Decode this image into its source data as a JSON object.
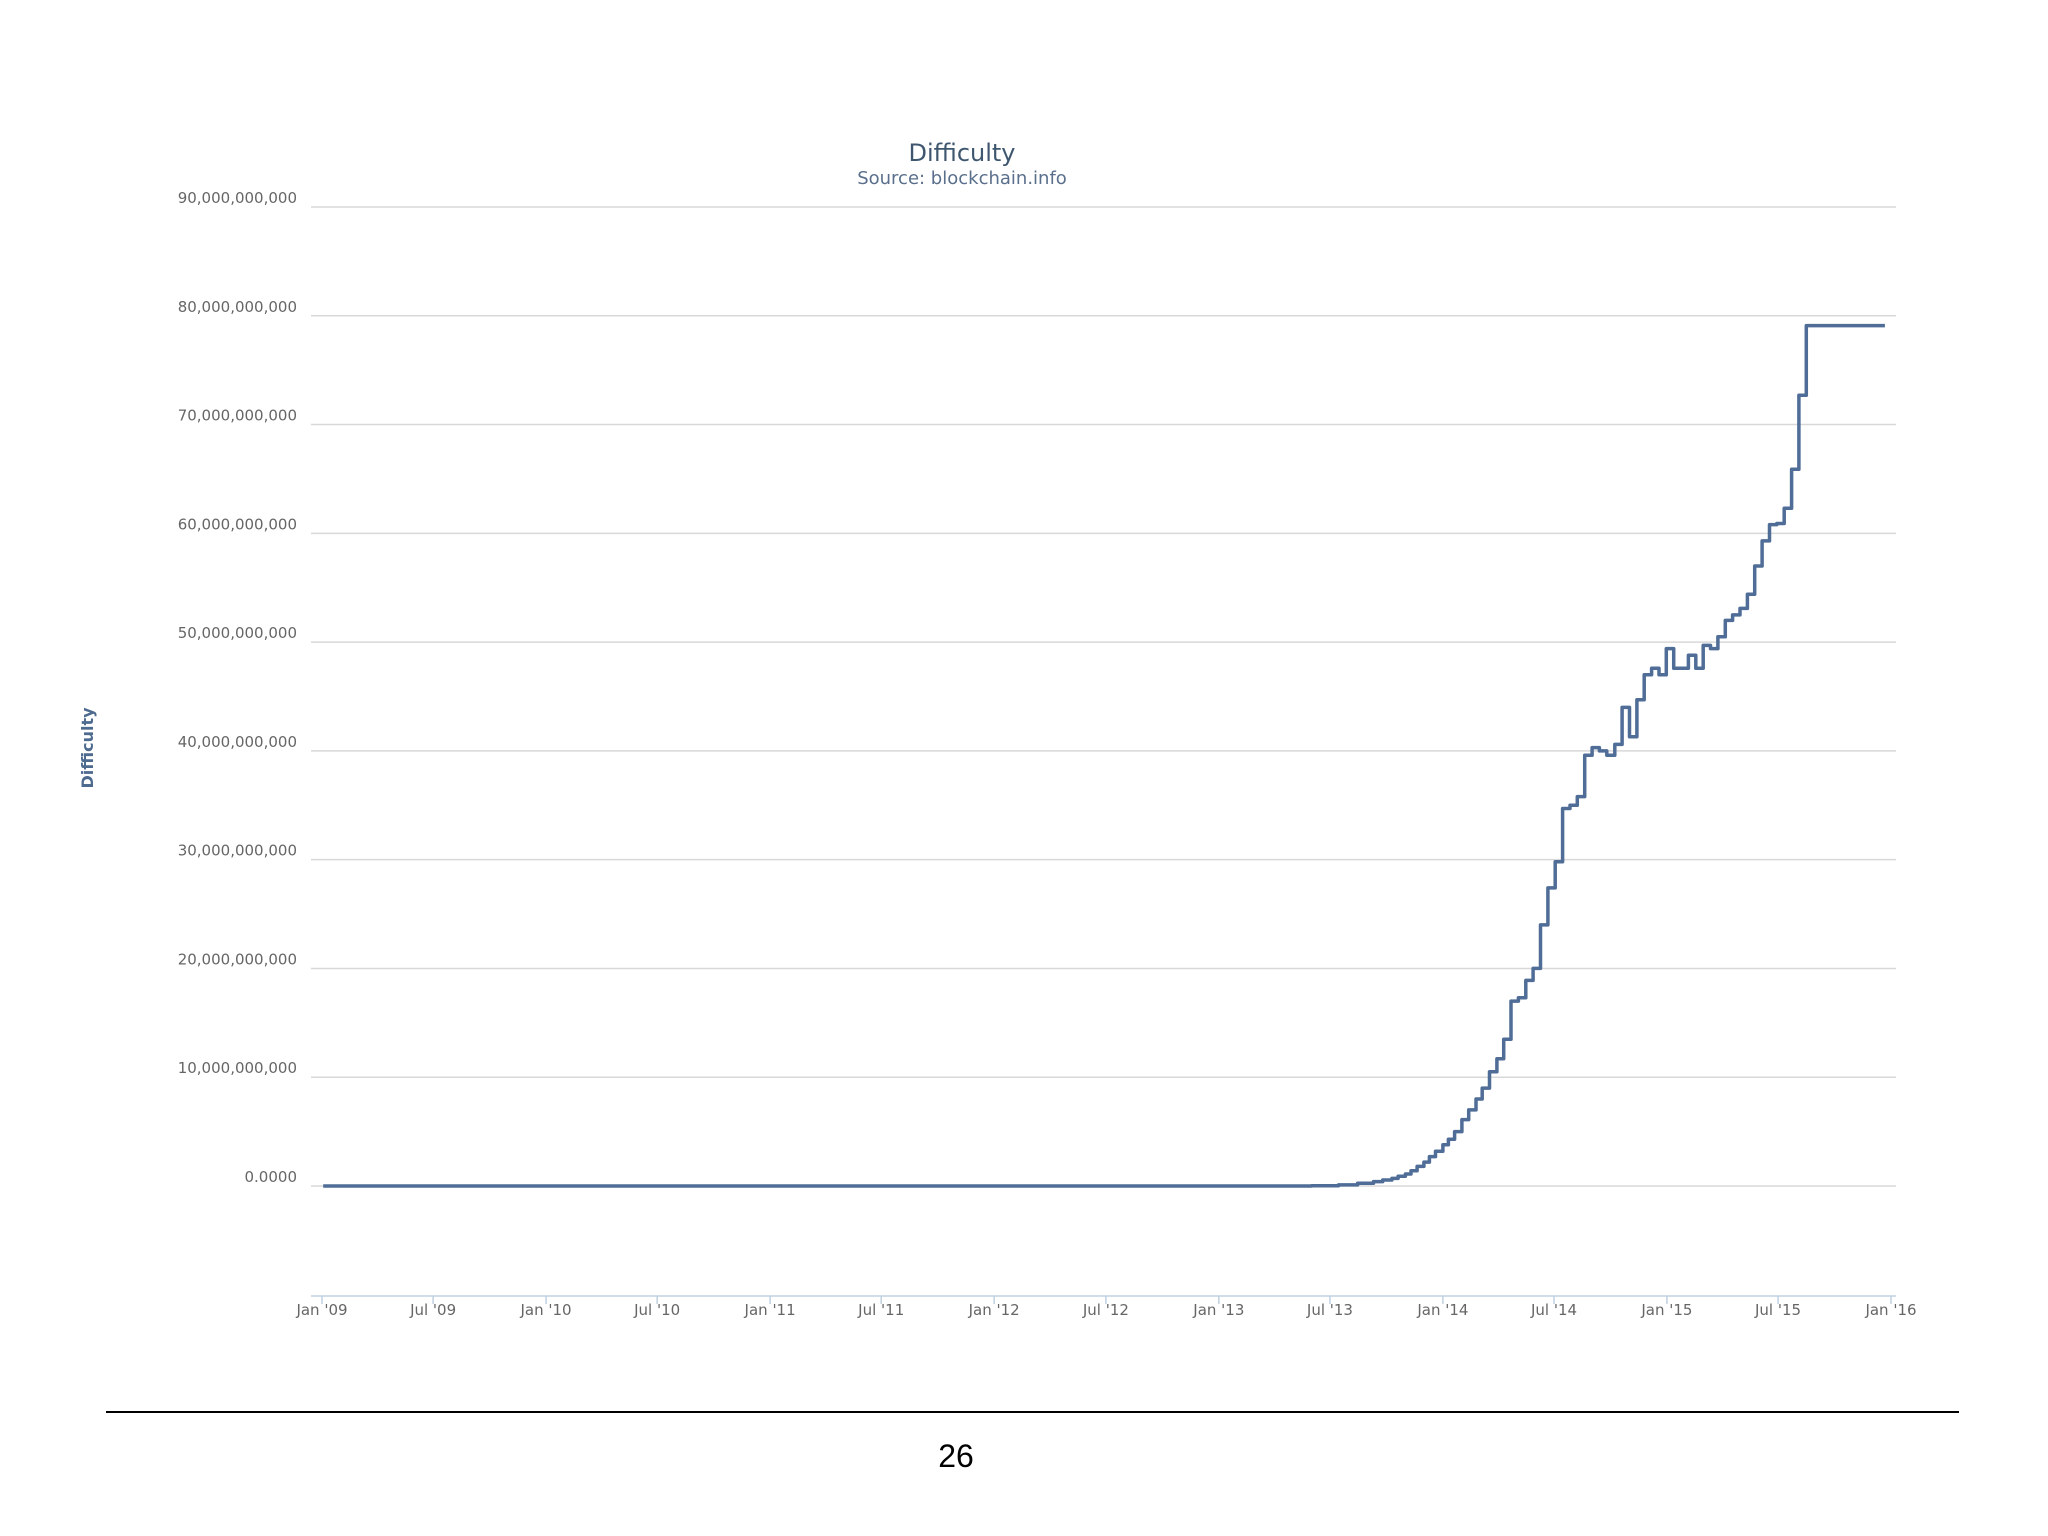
{
  "page": {
    "number": "26"
  },
  "chart_data": {
    "type": "line",
    "title": "Difficulty",
    "subtitle": "Source: blockchain.info",
    "xlabel": "",
    "ylabel": "Difficulty",
    "grid": true,
    "legend": "none",
    "step": true,
    "xlim": [
      "2009-01-01",
      "2016-01-01"
    ],
    "ylim": [
      -10000000000,
      90000000000
    ],
    "x_ticks": [
      {
        "date": "2009-01-01",
        "label": "Jan '09"
      },
      {
        "date": "2009-07-01",
        "label": "Jul '09"
      },
      {
        "date": "2010-01-01",
        "label": "Jan '10"
      },
      {
        "date": "2010-07-01",
        "label": "Jul '10"
      },
      {
        "date": "2011-01-01",
        "label": "Jan '11"
      },
      {
        "date": "2011-07-01",
        "label": "Jul '11"
      },
      {
        "date": "2012-01-01",
        "label": "Jan '12"
      },
      {
        "date": "2012-07-01",
        "label": "Jul '12"
      },
      {
        "date": "2013-01-01",
        "label": "Jan '13"
      },
      {
        "date": "2013-07-01",
        "label": "Jul '13"
      },
      {
        "date": "2014-01-01",
        "label": "Jan '14"
      },
      {
        "date": "2014-07-01",
        "label": "Jul '14"
      },
      {
        "date": "2015-01-01",
        "label": "Jan '15"
      },
      {
        "date": "2015-07-01",
        "label": "Jul '15"
      },
      {
        "date": "2016-01-01",
        "label": "Jan '16"
      }
    ],
    "y_ticks": [
      {
        "value": 0,
        "label": "0.0000"
      },
      {
        "value": 10000000000,
        "label": "10,000,000,000"
      },
      {
        "value": 20000000000,
        "label": "20,000,000,000"
      },
      {
        "value": 30000000000,
        "label": "30,000,000,000"
      },
      {
        "value": 40000000000,
        "label": "40,000,000,000"
      },
      {
        "value": 50000000000,
        "label": "50,000,000,000"
      },
      {
        "value": 60000000000,
        "label": "60,000,000,000"
      },
      {
        "value": 70000000000,
        "label": "70,000,000,000"
      },
      {
        "value": 80000000000,
        "label": "80,000,000,000"
      },
      {
        "value": 90000000000,
        "label": "90,000,000,000"
      }
    ],
    "series": [
      {
        "color": "#4f6d96",
        "x": [
          "2009-01-03",
          "2013-06-01",
          "2013-07-15",
          "2013-08-15",
          "2013-09-10",
          "2013-09-25",
          "2013-10-10",
          "2013-10-20",
          "2013-11-01",
          "2013-11-10",
          "2013-11-20",
          "2013-12-01",
          "2013-12-10",
          "2013-12-20",
          "2014-01-01",
          "2014-01-10",
          "2014-01-20",
          "2014-02-01",
          "2014-02-12",
          "2014-02-24",
          "2014-03-06",
          "2014-03-18",
          "2014-03-30",
          "2014-04-10",
          "2014-04-22",
          "2014-05-04",
          "2014-05-16",
          "2014-05-28",
          "2014-06-09",
          "2014-06-21",
          "2014-07-03",
          "2014-07-15",
          "2014-07-27",
          "2014-08-08",
          "2014-08-20",
          "2014-09-01",
          "2014-09-13",
          "2014-09-25",
          "2014-10-08",
          "2014-10-20",
          "2014-11-01",
          "2014-11-13",
          "2014-11-25",
          "2014-12-07",
          "2014-12-19",
          "2014-12-31",
          "2015-01-12",
          "2015-01-24",
          "2015-02-05",
          "2015-02-17",
          "2015-03-01",
          "2015-03-13",
          "2015-03-25",
          "2015-04-06",
          "2015-04-18",
          "2015-04-30",
          "2015-05-12",
          "2015-05-24",
          "2015-06-05",
          "2015-06-17",
          "2015-06-29",
          "2015-07-11",
          "2015-07-23",
          "2015-08-04",
          "2015-08-16",
          "2015-08-28",
          "2015-09-09",
          "2015-09-21",
          "2015-10-03",
          "2015-10-15",
          "2015-10-27",
          "2015-11-08",
          "2015-11-20",
          "2015-12-02",
          "2015-12-14",
          "2015-12-22"
        ],
        "values": [
          0,
          20000000,
          100000000,
          250000000,
          400000000,
          550000000,
          700000000,
          900000000,
          1100000000,
          1400000000,
          1800000000,
          2200000000,
          2700000000,
          3200000000,
          3800000000,
          4300000000,
          5000000000,
          6100000000,
          7000000000,
          8000000000,
          9000000000,
          10500000000,
          11700000000,
          13500000000,
          17000000000,
          17300000000,
          18900000000,
          20000000000,
          24000000000,
          27400000000,
          29800000000,
          34700000000,
          35000000000,
          35800000000,
          39600000000,
          40300000000,
          40000000000,
          39600000000,
          40600000000,
          44000000000,
          41300000000,
          44700000000,
          47000000000,
          47600000000,
          47000000000,
          49400000000,
          47600000000,
          47600000000,
          48800000000,
          47600000000,
          49700000000,
          49400000000,
          50500000000,
          52000000000,
          52500000000,
          53100000000,
          54400000000,
          57000000000,
          59300000000,
          60800000000,
          60900000000,
          62300000000,
          65900000000,
          72700000000,
          79100000000,
          79100000000,
          79100000000,
          79100000000,
          79100000000,
          79100000000,
          79100000000,
          79100000000,
          79100000000,
          79100000000,
          79100000000,
          79100000000
        ]
      }
    ]
  }
}
